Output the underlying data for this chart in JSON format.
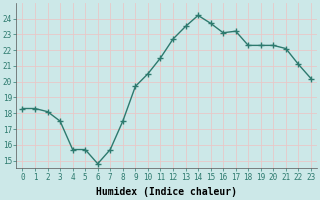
{
  "x": [
    0,
    1,
    2,
    3,
    4,
    5,
    6,
    7,
    8,
    9,
    10,
    11,
    12,
    13,
    14,
    15,
    16,
    17,
    18,
    19,
    20,
    21,
    22,
    23
  ],
  "y": [
    18.3,
    18.3,
    18.1,
    17.5,
    15.7,
    15.7,
    14.8,
    15.7,
    17.5,
    19.7,
    20.5,
    21.5,
    22.7,
    23.5,
    24.2,
    23.7,
    23.1,
    23.2,
    22.3,
    22.3,
    22.3,
    22.1,
    21.1,
    20.2
  ],
  "xlabel": "Humidex (Indice chaleur)",
  "ylim": [
    14.5,
    25.0
  ],
  "xlim": [
    -0.5,
    23.5
  ],
  "yticks": [
    15,
    16,
    17,
    18,
    19,
    20,
    21,
    22,
    23,
    24
  ],
  "xticks": [
    0,
    1,
    2,
    3,
    4,
    5,
    6,
    7,
    8,
    9,
    10,
    11,
    12,
    13,
    14,
    15,
    16,
    17,
    18,
    19,
    20,
    21,
    22,
    23
  ],
  "line_color": "#2d7a6e",
  "marker_color": "#2d7a6e",
  "bg_color": "#cce8e8",
  "grid_color": "#e8c8c8",
  "tick_label_fontsize": 5.5,
  "xlabel_fontsize": 7.0
}
